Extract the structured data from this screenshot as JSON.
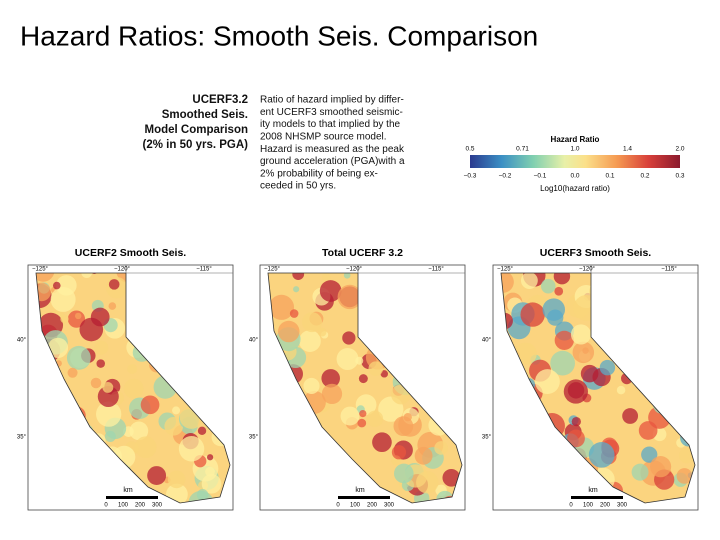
{
  "title": "Hazard Ratios: Smooth Seis. Comparison",
  "heading": [
    "UCERF3.2",
    "Smoothed Seis.",
    "Model Comparison",
    "(2% in 50 yrs. PGA)"
  ],
  "description": [
    "Ratio of hazard implied by differ-",
    "ent UCERF3 smoothed seismic-",
    "ity models to that implied by the",
    "2008 NHSMP source model.",
    "Hazard is measured as the peak",
    "ground acceleration (PGA)with a",
    "2% probability of being ex-",
    "ceeded in 50 yrs."
  ],
  "legend": {
    "title": "Hazard Ratio",
    "top_labels": [
      "0.5",
      "0.71",
      "1.0",
      "1.4",
      "2.0"
    ],
    "bottom_labels": [
      "−0.3",
      "−0.2",
      "−0.1",
      "0.0",
      "0.1",
      "0.2",
      "0.3"
    ],
    "axis_label": "Log10(hazard ratio)"
  },
  "map_axes": {
    "lon": [
      "−125°",
      "−120°",
      "−115°"
    ],
    "lat": [
      "40°",
      "35°"
    ],
    "scale_unit": "km",
    "scale_labels": [
      "0",
      "100",
      "200",
      "300"
    ]
  },
  "maps": [
    {
      "title": "UCERF2 Smooth Seis."
    },
    {
      "title": "Total UCERF 3.2"
    },
    {
      "title": "UCERF3 Smooth Seis."
    }
  ]
}
